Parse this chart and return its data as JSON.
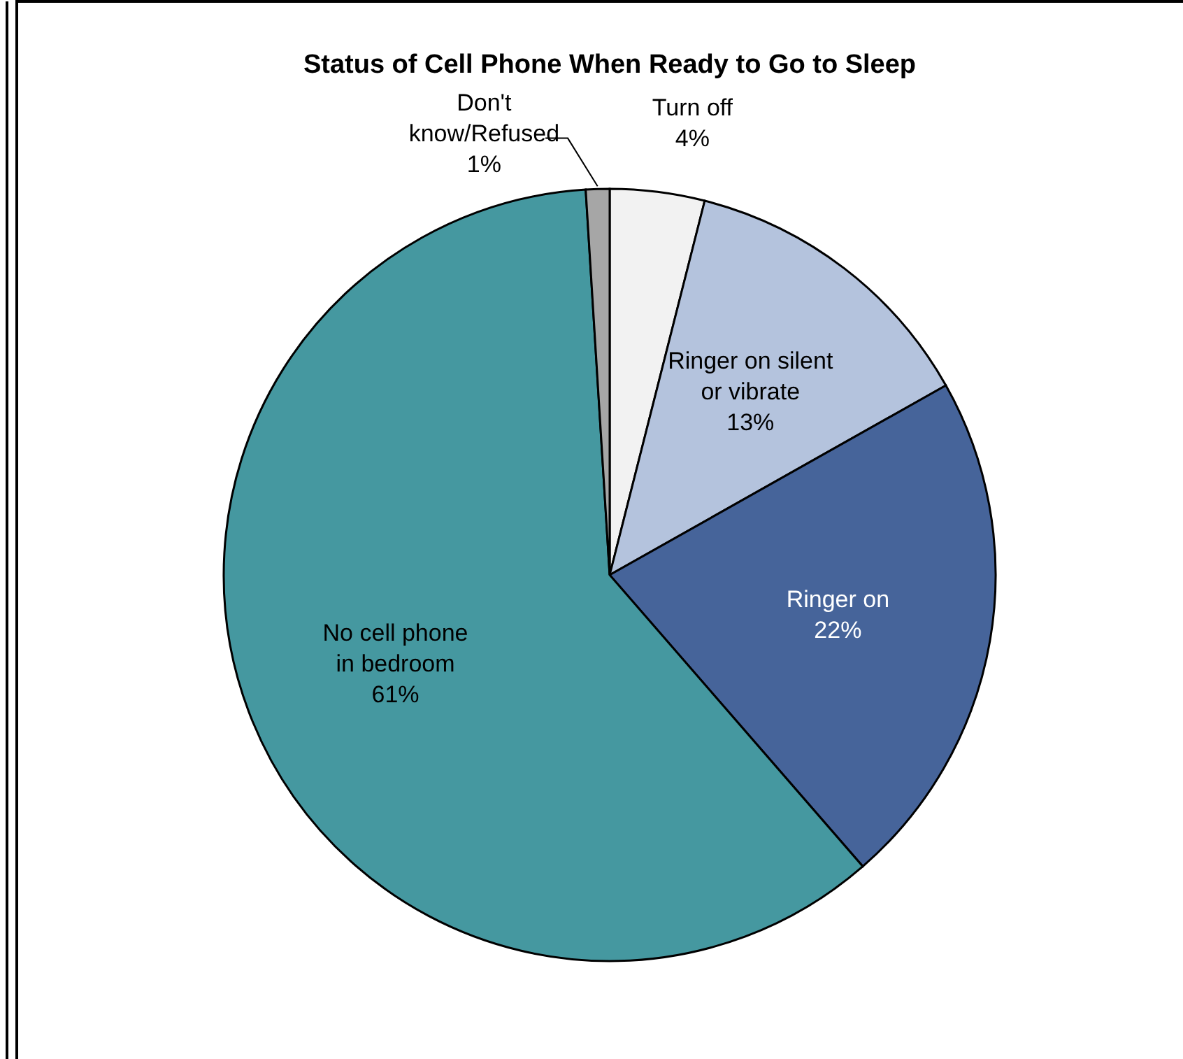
{
  "chart_data": {
    "type": "pie",
    "title": "Status of Cell Phone When Ready to Go to Sleep",
    "categories": [
      "Turn off",
      "Ringer on silent or vibrate",
      "Ringer on",
      "No cell phone in bedroom",
      "Don't know/Refused"
    ],
    "values": [
      4,
      13,
      22,
      61,
      1
    ],
    "colors": [
      "#f2f2f2",
      "#b4c3dd",
      "#46649a",
      "#4598a0",
      "#a6a6a6"
    ],
    "value_labels": [
      "4%",
      "13%",
      "22%",
      "61%",
      "1%"
    ],
    "legend": false
  }
}
